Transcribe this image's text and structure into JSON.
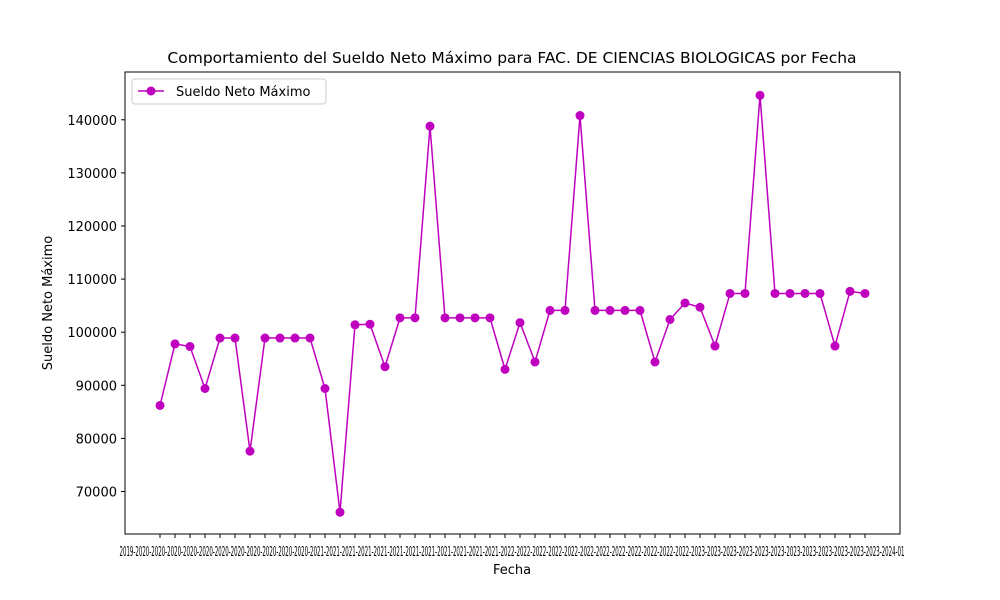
{
  "chart_data": {
    "type": "line",
    "title": "Comportamiento del Sueldo Neto Máximo para FAC. DE CIENCIAS BIOLOGICAS por Fecha",
    "xlabel": "Fecha",
    "ylabel": "Sueldo Neto Máximo",
    "legend": {
      "placement": "top-left",
      "entries": [
        "Sueldo Neto Máximo"
      ]
    },
    "grid": false,
    "color": "#bf00bf",
    "ylim": [
      62000,
      149000
    ],
    "yticks": [
      70000,
      80000,
      90000,
      100000,
      110000,
      120000,
      130000,
      140000
    ],
    "xtick_text": "2019-2020-2020-2020-2020-2020-2020-2020-2020-2020-2020-2020-2021-2021-2021-2021-2021-2021-2021-2021-2021-2021-2021-2021-2022-2022-2022-2022-2022-2022-2022-2022-2022-2022-2022-2022-2023-2023-2023-2023-2023-2023-2023-2023-2023-2023-2023-2023-2024-01",
    "series": [
      {
        "name": "Sueldo Neto Máximo",
        "values": [
          86200,
          97800,
          97300,
          89400,
          98900,
          98900,
          77600,
          98900,
          98900,
          98900,
          98900,
          89400,
          66100,
          101400,
          101500,
          93500,
          102700,
          102700,
          138800,
          102700,
          102700,
          102700,
          102700,
          93000,
          101800,
          94400,
          104100,
          104100,
          140800,
          104100,
          104100,
          104100,
          104100,
          94400,
          102400,
          105500,
          104700,
          97400,
          107300,
          107300,
          144600,
          107300,
          107300,
          107300,
          107300,
          97400,
          107700,
          107300
        ]
      }
    ]
  }
}
